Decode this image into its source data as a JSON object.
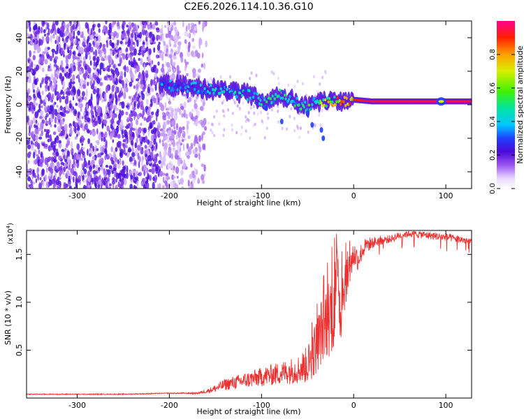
{
  "title": "C2E6.2026.114.10.36.G10",
  "top_panel": {
    "ylabel": "Frequency (Hz)",
    "xlabel": "Height of straight line (km)",
    "colorbar_label": "Normalized spectral amplitude",
    "colorbar_ticks": [
      "0.0",
      "0.2",
      "0.4",
      "0.6",
      "0.8"
    ]
  },
  "bottom_panel": {
    "ylabel": "SNR (10 * v/v)",
    "scale_label": "(x10",
    "scale_exponent": "4",
    "scale_close": ")",
    "xlabel": "Height of straight line (km)"
  },
  "chart_data": [
    {
      "type": "heatmap",
      "title": "C2E6.2026.114.10.36.G10",
      "xlabel": "Height of straight line (km)",
      "ylabel": "Frequency (Hz)",
      "xlim": [
        -355,
        128
      ],
      "ylim": [
        -50,
        50
      ],
      "xticks": [
        -300,
        -200,
        -100,
        0,
        100
      ],
      "yticks": [
        -40,
        -20,
        0,
        20,
        40
      ],
      "xtick_labels": [
        "-300",
        "-200",
        "-100",
        "0",
        "100"
      ],
      "ytick_labels": [
        "-40",
        "-20",
        "0",
        "20",
        "40"
      ],
      "colorbar": {
        "label": "Normalized spectral amplitude",
        "range": [
          0,
          1
        ],
        "ticks": [
          0.0,
          0.2,
          0.4,
          0.6,
          0.8
        ]
      },
      "noise_region": {
        "x_range": [
          -355,
          -160
        ],
        "y_range": [
          -50,
          50
        ],
        "amplitude": "~0.1-0.3"
      },
      "signal_track": [
        {
          "x": -210,
          "freq": 12,
          "amp": 0.35
        },
        {
          "x": -190,
          "freq": 11,
          "amp": 0.35
        },
        {
          "x": -170,
          "freq": 10,
          "amp": 0.35
        },
        {
          "x": -150,
          "freq": 9,
          "amp": 0.4
        },
        {
          "x": -130,
          "freq": 8,
          "amp": 0.45
        },
        {
          "x": -110,
          "freq": 5,
          "amp": 0.45
        },
        {
          "x": -95,
          "freq": 1,
          "amp": 0.45
        },
        {
          "x": -80,
          "freq": 6,
          "amp": 0.5
        },
        {
          "x": -65,
          "freq": 2,
          "amp": 0.5
        },
        {
          "x": -50,
          "freq": -2,
          "amp": 0.5
        },
        {
          "x": -40,
          "freq": 2,
          "amp": 0.55
        },
        {
          "x": -25,
          "freq": 2,
          "amp": 0.7
        },
        {
          "x": -10,
          "freq": 2,
          "amp": 0.8
        },
        {
          "x": 0,
          "freq": 3,
          "amp": 0.9
        },
        {
          "x": 20,
          "freq": 2,
          "amp": 0.95
        },
        {
          "x": 60,
          "freq": 2,
          "amp": 0.95
        },
        {
          "x": 95,
          "freq": 2,
          "amp": 0.95
        },
        {
          "x": 128,
          "freq": 2,
          "amp": 0.95
        }
      ]
    },
    {
      "type": "line",
      "xlabel": "Height of straight line (km)",
      "ylabel": "SNR (10 * v/v)",
      "units_multiplier": "x10^4",
      "xlim": [
        -355,
        128
      ],
      "ylim": [
        0,
        1.75
      ],
      "xticks": [
        -300,
        -200,
        -100,
        0,
        100
      ],
      "yticks": [
        0.5,
        1.0,
        1.5
      ],
      "xtick_labels": [
        "-300",
        "-200",
        "-100",
        "0",
        "100"
      ],
      "ytick_labels": [
        "0.5",
        "1.0",
        "1.5"
      ],
      "series": [
        {
          "name": "SNR",
          "color": "#ee3030",
          "x": [
            -355,
            -300,
            -250,
            -200,
            -170,
            -160,
            -150,
            -140,
            -120,
            -100,
            -80,
            -60,
            -50,
            -45,
            -40,
            -35,
            -30,
            -25,
            -20,
            -17,
            -15,
            -10,
            -5,
            0,
            5,
            10,
            15,
            20,
            30,
            40,
            50,
            60,
            80,
            100,
            120,
            128
          ],
          "values": [
            0.04,
            0.04,
            0.04,
            0.05,
            0.05,
            0.07,
            0.1,
            0.14,
            0.18,
            0.22,
            0.26,
            0.3,
            0.35,
            0.45,
            0.55,
            0.7,
            0.8,
            0.9,
            1.0,
            1.45,
            0.9,
            1.2,
            1.35,
            1.5,
            1.45,
            1.55,
            1.6,
            1.62,
            1.65,
            1.66,
            1.7,
            1.72,
            1.7,
            1.68,
            1.65,
            1.63
          ],
          "spread": [
            0.005,
            0.005,
            0.005,
            0.005,
            0.01,
            0.02,
            0.04,
            0.06,
            0.08,
            0.1,
            0.12,
            0.15,
            0.2,
            0.25,
            0.3,
            0.35,
            0.4,
            0.45,
            0.5,
            0.2,
            0.4,
            0.3,
            0.2,
            0.15,
            0.12,
            0.1,
            0.08,
            0.06,
            0.05,
            0.04,
            0.04,
            0.04,
            0.04,
            0.04,
            0.04,
            0.04
          ]
        }
      ]
    }
  ]
}
